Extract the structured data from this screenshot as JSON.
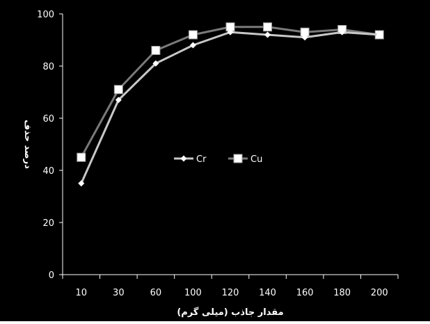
{
  "chart_data": {
    "type": "line",
    "title": "",
    "xlabel": "مقدار جاذب (میلی گرم)",
    "ylabel": "درصد حذف",
    "categories": [
      "10",
      "30",
      "60",
      "100",
      "120",
      "140",
      "160",
      "180",
      "200"
    ],
    "ylim": [
      0,
      100
    ],
    "yticks": [
      0,
      20,
      40,
      60,
      80,
      100
    ],
    "grid": false,
    "legend": "center",
    "series": [
      {
        "name": "Cr",
        "marker": "diamond",
        "values": [
          35,
          67,
          81,
          88,
          93,
          92,
          91,
          93,
          92
        ],
        "color": "#c8c8c8"
      },
      {
        "name": "Cu",
        "marker": "square",
        "values": [
          45,
          71,
          86,
          92,
          95,
          95,
          93,
          94,
          92
        ],
        "color": "#7a7a7a"
      }
    ],
    "colors": {
      "background": "#000000",
      "text": "#ffffff",
      "axis": "#ffffff",
      "marker_fill": "#ffffff"
    }
  }
}
